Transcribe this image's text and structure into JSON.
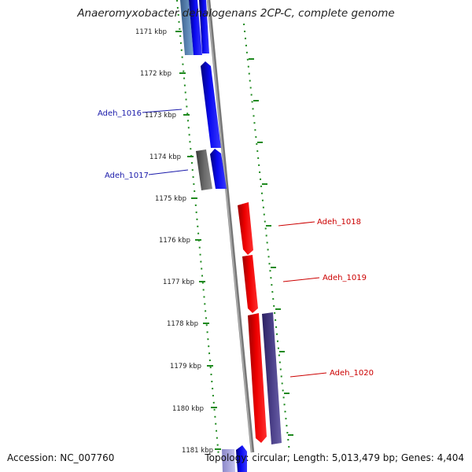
{
  "title": "Anaeromyxobacter dehalogenans 2CP-C, complete genome",
  "footer": {
    "accession": "Accession: NC_007760",
    "summary": "Topology: circular; Length: 5,013,479 bp; Genes: 4,404"
  },
  "scale": {
    "unit": "kbp",
    "ticks": [
      "1171 kbp",
      "1172 kbp",
      "1173 kbp",
      "1174 kbp",
      "1175 kbp",
      "1176 kbp",
      "1177 kbp",
      "1178 kbp",
      "1179 kbp",
      "1180 kbp",
      "1181 kbp"
    ]
  },
  "colors": {
    "forward": "#0a0af0",
    "reverse": "#ee0000",
    "other": "#5a5a5a",
    "purple": "#4a3f88",
    "tick": "#1f8a1f",
    "backbone": "#8a8a8a"
  },
  "labels": [
    {
      "text": "Adeh_1016",
      "color": "#1a1aaa"
    },
    {
      "text": "Adeh_1017",
      "color": "#1a1aaa"
    },
    {
      "text": "Adeh_1018",
      "color": "#cc0000"
    },
    {
      "text": "Adeh_1019",
      "color": "#cc0000"
    },
    {
      "text": "Adeh_1020",
      "color": "#cc0000"
    }
  ]
}
